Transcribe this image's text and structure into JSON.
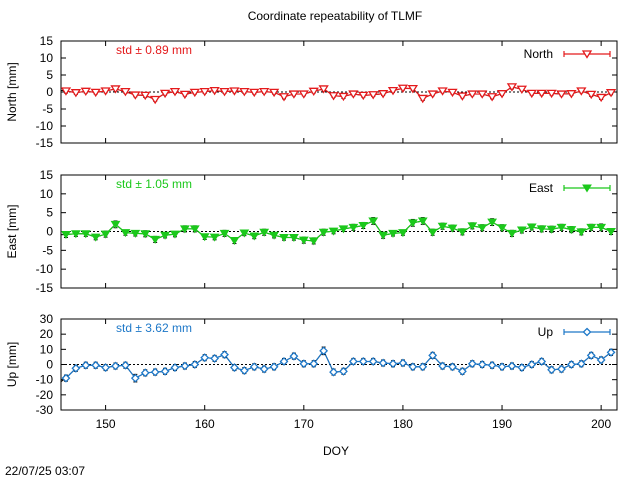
{
  "chart_data": {
    "type": "line",
    "title": "Coordinate repeatability of TLMF",
    "xlabel": "DOY",
    "xlim": [
      145.5,
      201.6
    ],
    "x_ticks": [
      150,
      160,
      170,
      180,
      190,
      200
    ],
    "timestamp": "22/07/25 03:07",
    "panels": [
      {
        "name": "North",
        "ylabel": "North [mm]",
        "ylim": [
          -15,
          15
        ],
        "y_ticks": [
          15,
          10,
          5,
          0,
          -5,
          -10,
          -15
        ],
        "std_label": "std ± 0.89 mm",
        "color": "#e41a1c",
        "marker": "triangle-down-open",
        "x": [
          146,
          147,
          148,
          149,
          150,
          151,
          152,
          153,
          154,
          155,
          156,
          157,
          158,
          159,
          160,
          161,
          162,
          163,
          164,
          165,
          166,
          167,
          168,
          169,
          170,
          171,
          172,
          173,
          174,
          175,
          176,
          177,
          178,
          179,
          180,
          181,
          182,
          183,
          184,
          185,
          186,
          187,
          188,
          189,
          190,
          191,
          192,
          193,
          194,
          195,
          196,
          197,
          198,
          199,
          200,
          201
        ],
        "values": [
          0.3,
          -0.2,
          0.2,
          -0.1,
          0.3,
          0.9,
          0.1,
          -0.9,
          -1.0,
          -2.2,
          -0.4,
          0.1,
          -0.7,
          -0.1,
          0.1,
          0.4,
          0.1,
          0.3,
          0.1,
          -0.1,
          0.1,
          -0.1,
          -1.4,
          -0.6,
          -0.6,
          0.2,
          0.9,
          -1.1,
          -1.3,
          -0.6,
          -1.0,
          -0.8,
          -0.5,
          0.4,
          1.1,
          1.0,
          -1.9,
          -0.6,
          0.3,
          -0.1,
          -1.2,
          -0.6,
          -0.6,
          -1.4,
          -0.5,
          1.5,
          0.8,
          -0.4,
          -0.4,
          -0.4,
          -0.6,
          -0.5,
          0.3,
          -0.7,
          -1.6,
          -0.2
        ],
        "errors": [
          0.6,
          0.5,
          0.5,
          0.5,
          0.5,
          0.6,
          0.5,
          0.5,
          0.6,
          0.5,
          0.5,
          0.5,
          0.5,
          0.5,
          0.5,
          0.5,
          0.5,
          0.5,
          0.5,
          0.5,
          0.5,
          0.5,
          0.6,
          0.5,
          0.5,
          0.5,
          0.6,
          0.5,
          0.6,
          0.5,
          0.5,
          0.5,
          0.5,
          0.5,
          0.5,
          0.6,
          0.6,
          0.5,
          0.5,
          0.5,
          0.5,
          0.5,
          0.5,
          0.6,
          0.5,
          0.6,
          0.5,
          0.5,
          0.5,
          0.5,
          0.5,
          0.5,
          0.5,
          0.6,
          0.6,
          0.6
        ]
      },
      {
        "name": "East",
        "ylabel": "East [mm]",
        "ylim": [
          -15,
          15
        ],
        "y_ticks": [
          15,
          10,
          5,
          0,
          -5,
          -10,
          -15
        ],
        "std_label": "std ± 1.05 mm",
        "color": "#1bc81b",
        "marker": "triangle-down-filled",
        "x": [
          146,
          147,
          148,
          149,
          150,
          151,
          152,
          153,
          154,
          155,
          156,
          157,
          158,
          159,
          160,
          161,
          162,
          163,
          164,
          165,
          166,
          167,
          168,
          169,
          170,
          171,
          172,
          173,
          174,
          175,
          176,
          177,
          178,
          179,
          180,
          181,
          182,
          183,
          184,
          185,
          186,
          187,
          188,
          189,
          190,
          191,
          192,
          193,
          194,
          195,
          196,
          197,
          198,
          199,
          200,
          201
        ],
        "values": [
          -0.8,
          -0.6,
          -0.6,
          -1.5,
          -0.7,
          1.9,
          -0.3,
          -0.5,
          -0.6,
          -2.1,
          -1.0,
          -0.7,
          0.7,
          0.7,
          -1.4,
          -1.5,
          -0.5,
          -2.4,
          -0.4,
          -1.2,
          -0.2,
          -1.0,
          -1.6,
          -1.6,
          -2.3,
          -2.5,
          -0.2,
          0.1,
          0.7,
          1.1,
          1.6,
          2.8,
          -1.0,
          -0.5,
          -0.3,
          2.3,
          2.8,
          -0.2,
          1.4,
          0.9,
          -0.1,
          1.5,
          1.0,
          2.5,
          1.0,
          -0.5,
          0.4,
          1.2,
          0.7,
          0.6,
          1.1,
          0.5,
          -0.1,
          1.1,
          1.1,
          0.0
        ],
        "errors": [
          0.8,
          0.7,
          0.7,
          0.7,
          0.8,
          0.9,
          0.7,
          0.7,
          0.8,
          0.8,
          0.7,
          0.7,
          0.8,
          0.8,
          0.7,
          0.7,
          0.8,
          0.8,
          0.7,
          0.7,
          0.8,
          0.7,
          0.7,
          0.7,
          0.8,
          0.8,
          0.8,
          0.7,
          0.7,
          0.8,
          0.8,
          0.9,
          0.8,
          0.7,
          0.7,
          0.9,
          0.9,
          0.8,
          0.8,
          0.8,
          0.8,
          0.8,
          0.8,
          0.9,
          0.8,
          0.8,
          0.8,
          0.8,
          0.8,
          0.8,
          0.8,
          0.8,
          0.8,
          0.8,
          0.9,
          0.8
        ]
      },
      {
        "name": "Up",
        "ylabel": "Up [mm]",
        "ylim": [
          -30,
          30
        ],
        "y_ticks": [
          30,
          20,
          10,
          0,
          -10,
          -20,
          -30
        ],
        "std_label": "std ± 3.62 mm",
        "color": "#1e78c8",
        "marker": "diamond-open",
        "x": [
          146,
          147,
          148,
          149,
          150,
          151,
          152,
          153,
          154,
          155,
          156,
          157,
          158,
          159,
          160,
          161,
          162,
          163,
          164,
          165,
          166,
          167,
          168,
          169,
          170,
          171,
          172,
          173,
          174,
          175,
          176,
          177,
          178,
          179,
          180,
          181,
          182,
          183,
          184,
          185,
          186,
          187,
          188,
          189,
          190,
          191,
          192,
          193,
          194,
          195,
          196,
          197,
          198,
          199,
          200,
          201
        ],
        "values": [
          -9.0,
          -2.5,
          -0.5,
          -0.5,
          -2.0,
          -1.0,
          -0.5,
          -9.0,
          -5.5,
          -5.0,
          -4.5,
          -2.0,
          -1.0,
          0.0,
          4.5,
          4.0,
          6.5,
          -2.0,
          -4.0,
          -1.5,
          -3.0,
          -1.5,
          2.0,
          5.5,
          0.5,
          0.5,
          9.0,
          -5.0,
          -4.5,
          2.0,
          2.0,
          2.0,
          1.0,
          0.5,
          1.0,
          -1.5,
          -1.5,
          6.0,
          -1.0,
          -1.5,
          -4.5,
          0.5,
          0.0,
          -0.5,
          -1.5,
          -1.0,
          -2.0,
          0.0,
          2.0,
          -3.5,
          -3.0,
          0.0,
          0.5,
          6.0,
          3.0,
          8.0
        ],
        "errors": [
          2.0,
          2.0,
          2.0,
          2.0,
          2.0,
          2.0,
          2.0,
          2.5,
          2.0,
          2.0,
          2.0,
          2.0,
          2.0,
          2.0,
          2.0,
          2.0,
          2.0,
          2.0,
          2.0,
          2.0,
          2.0,
          2.0,
          2.0,
          2.0,
          2.0,
          2.0,
          2.5,
          2.0,
          2.0,
          2.0,
          2.0,
          2.0,
          2.0,
          2.0,
          2.0,
          2.0,
          2.0,
          2.0,
          2.0,
          2.0,
          2.0,
          2.0,
          2.0,
          2.0,
          2.0,
          2.0,
          2.0,
          2.0,
          2.0,
          2.0,
          2.0,
          2.0,
          2.0,
          2.0,
          2.0,
          2.0
        ]
      }
    ]
  }
}
